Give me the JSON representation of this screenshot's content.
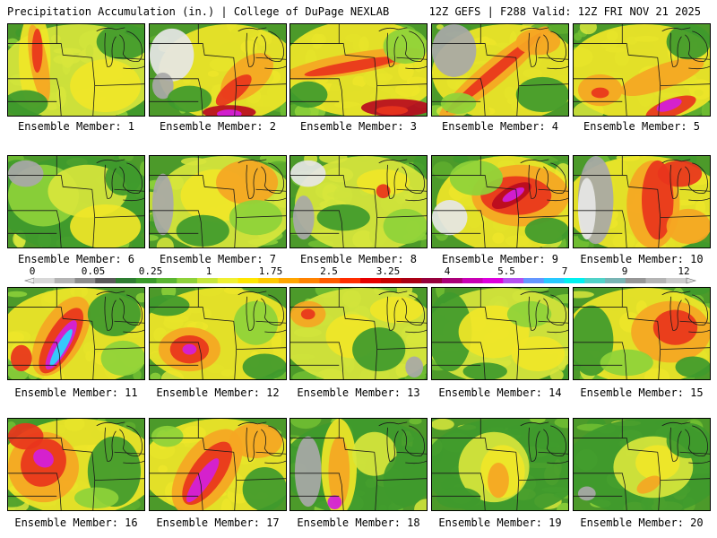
{
  "header": {
    "left": "Precipitation Accumulation (in.) | College of DuPage NEXLAB",
    "right": "12Z GEFS | F288 Valid: 12Z FRI NOV 21 2025"
  },
  "member_prefix": "Ensemble Member: ",
  "members": [
    {
      "id": "1",
      "label": "Ensemble Member: 1"
    },
    {
      "id": "2",
      "label": "Ensemble Member: 2"
    },
    {
      "id": "3",
      "label": "Ensemble Member: 3"
    },
    {
      "id": "4",
      "label": "Ensemble Member: 4"
    },
    {
      "id": "5",
      "label": "Ensemble Member: 5"
    },
    {
      "id": "6",
      "label": "Ensemble Member: 6"
    },
    {
      "id": "7",
      "label": "Ensemble Member: 7"
    },
    {
      "id": "8",
      "label": "Ensemble Member: 8"
    },
    {
      "id": "9",
      "label": "Ensemble Member: 9"
    },
    {
      "id": "10",
      "label": "Ensemble Member: 10"
    },
    {
      "id": "11",
      "label": "Ensemble Member: 11"
    },
    {
      "id": "12",
      "label": "Ensemble Member: 12"
    },
    {
      "id": "13",
      "label": "Ensemble Member: 13"
    },
    {
      "id": "14",
      "label": "Ensemble Member: 14"
    },
    {
      "id": "15",
      "label": "Ensemble Member: 15"
    },
    {
      "id": "16",
      "label": "Ensemble Member: 16"
    },
    {
      "id": "17",
      "label": "Ensemble Member: 17"
    },
    {
      "id": "18",
      "label": "Ensemble Member: 18"
    },
    {
      "id": "19",
      "label": "Ensemble Member: 19"
    },
    {
      "id": "20",
      "label": "Ensemble Member: 20"
    }
  ],
  "colorbar": {
    "labels": [
      "0",
      "0.05",
      "0.25",
      "1",
      "1.75",
      "2.5",
      "3.25",
      "4",
      "5.5",
      "7",
      "9",
      "12"
    ],
    "colors": [
      "#d8d8d8",
      "#b4b4b4",
      "#8c8c8c",
      "#5a5a5a",
      "#2e7d32",
      "#3a9a2a",
      "#5ab532",
      "#8ed23a",
      "#c8e63c",
      "#f0f032",
      "#ffe600",
      "#ffc800",
      "#ffa500",
      "#ff8200",
      "#ff5a00",
      "#ff2d00",
      "#e60000",
      "#c80000",
      "#aa0014",
      "#96003c",
      "#aa0078",
      "#c800b4",
      "#dc00dc",
      "#b450f0",
      "#6496ff",
      "#28c8ff",
      "#00f0f0",
      "#50d2c8",
      "#78b4b4",
      "#969696",
      "#b4b4b4",
      "#cccccc"
    ]
  }
}
